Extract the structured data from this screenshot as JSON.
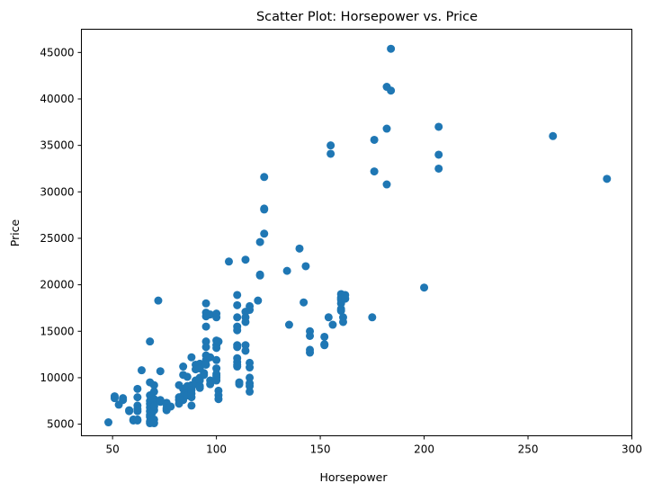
{
  "chart_data": {
    "type": "scatter",
    "title": "Scatter Plot: Horsepower vs. Price",
    "xlabel": "Horsepower",
    "ylabel": "Price",
    "xlim": [
      35,
      300
    ],
    "ylim": [
      3750,
      47500
    ],
    "grid": false,
    "x_ticks": [
      50,
      100,
      150,
      200,
      250,
      300
    ],
    "y_ticks": [
      5000,
      10000,
      15000,
      20000,
      25000,
      30000,
      35000,
      40000,
      45000
    ],
    "marker_color": "#1f77b4",
    "points": [
      [
        48,
        5200
      ],
      [
        51,
        7800
      ],
      [
        51,
        8000
      ],
      [
        53,
        7100
      ],
      [
        55,
        7800
      ],
      [
        55,
        7600
      ],
      [
        58,
        6500
      ],
      [
        58,
        6400
      ],
      [
        60,
        5400
      ],
      [
        60,
        5500
      ],
      [
        62,
        8800
      ],
      [
        62,
        7900
      ],
      [
        62,
        7000
      ],
      [
        62,
        6600
      ],
      [
        62,
        6400
      ],
      [
        62,
        5400
      ],
      [
        62,
        5500
      ],
      [
        64,
        10800
      ],
      [
        68,
        13900
      ],
      [
        68,
        9500
      ],
      [
        68,
        8100
      ],
      [
        68,
        7200
      ],
      [
        68,
        6800
      ],
      [
        68,
        6400
      ],
      [
        68,
        5800
      ],
      [
        68,
        5300
      ],
      [
        68,
        5100
      ],
      [
        68,
        6000
      ],
      [
        68,
        7500
      ],
      [
        69,
        6600
      ],
      [
        69,
        5200
      ],
      [
        69,
        6200
      ],
      [
        70,
        9200
      ],
      [
        70,
        8500
      ],
      [
        70,
        7700
      ],
      [
        70,
        7300
      ],
      [
        70,
        7000
      ],
      [
        70,
        6500
      ],
      [
        70,
        5500
      ],
      [
        70,
        5100
      ],
      [
        70,
        6900
      ],
      [
        72,
        18300
      ],
      [
        73,
        10700
      ],
      [
        73,
        7600
      ],
      [
        73,
        7400
      ],
      [
        76,
        7300
      ],
      [
        76,
        7100
      ],
      [
        76,
        6700
      ],
      [
        76,
        6500
      ],
      [
        78,
        6900
      ],
      [
        82,
        9200
      ],
      [
        82,
        7900
      ],
      [
        82,
        7600
      ],
      [
        82,
        7200
      ],
      [
        84,
        11200
      ],
      [
        84,
        10300
      ],
      [
        84,
        8800
      ],
      [
        84,
        8100
      ],
      [
        84,
        7600
      ],
      [
        86,
        10100
      ],
      [
        86,
        9100
      ],
      [
        86,
        8400
      ],
      [
        86,
        8100
      ],
      [
        88,
        12200
      ],
      [
        88,
        9200
      ],
      [
        88,
        8700
      ],
      [
        88,
        7000
      ],
      [
        88,
        7900
      ],
      [
        88,
        8300
      ],
      [
        90,
        11400
      ],
      [
        90,
        10900
      ],
      [
        90,
        9700
      ],
      [
        90,
        9300
      ],
      [
        92,
        11500
      ],
      [
        92,
        11000
      ],
      [
        92,
        10000
      ],
      [
        92,
        9700
      ],
      [
        92,
        9100
      ],
      [
        92,
        8900
      ],
      [
        94,
        10500
      ],
      [
        94,
        10300
      ],
      [
        95,
        18000
      ],
      [
        95,
        17000
      ],
      [
        95,
        16600
      ],
      [
        95,
        15500
      ],
      [
        95,
        13900
      ],
      [
        95,
        13300
      ],
      [
        95,
        12400
      ],
      [
        95,
        11900
      ],
      [
        95,
        11400
      ],
      [
        97,
        16800
      ],
      [
        97,
        12200
      ],
      [
        97,
        9700
      ],
      [
        97,
        9300
      ],
      [
        100,
        16900
      ],
      [
        100,
        16500
      ],
      [
        100,
        14000
      ],
      [
        100,
        13500
      ],
      [
        100,
        13200
      ],
      [
        100,
        11900
      ],
      [
        100,
        11000
      ],
      [
        100,
        10400
      ],
      [
        100,
        10200
      ],
      [
        100,
        10000
      ],
      [
        100,
        9700
      ],
      [
        101,
        13900
      ],
      [
        101,
        8600
      ],
      [
        101,
        8100
      ],
      [
        101,
        7700
      ],
      [
        106,
        22500
      ],
      [
        110,
        18900
      ],
      [
        110,
        17800
      ],
      [
        110,
        16500
      ],
      [
        110,
        15500
      ],
      [
        110,
        15100
      ],
      [
        110,
        13500
      ],
      [
        110,
        13300
      ],
      [
        110,
        12100
      ],
      [
        110,
        11700
      ],
      [
        110,
        11400
      ],
      [
        110,
        11200
      ],
      [
        111,
        9500
      ],
      [
        111,
        9300
      ],
      [
        114,
        22700
      ],
      [
        114,
        17100
      ],
      [
        114,
        16500
      ],
      [
        114,
        16000
      ],
      [
        114,
        13500
      ],
      [
        114,
        12900
      ],
      [
        116,
        17700
      ],
      [
        116,
        17300
      ],
      [
        116,
        11600
      ],
      [
        116,
        11100
      ],
      [
        116,
        10000
      ],
      [
        116,
        9400
      ],
      [
        116,
        9100
      ],
      [
        116,
        8500
      ],
      [
        120,
        18300
      ],
      [
        121,
        24600
      ],
      [
        121,
        21100
      ],
      [
        121,
        21000
      ],
      [
        123,
        31600
      ],
      [
        123,
        28200
      ],
      [
        123,
        28100
      ],
      [
        123,
        25500
      ],
      [
        134,
        21500
      ],
      [
        135,
        15700
      ],
      [
        140,
        23900
      ],
      [
        142,
        18100
      ],
      [
        143,
        22000
      ],
      [
        145,
        15000
      ],
      [
        145,
        14500
      ],
      [
        145,
        13000
      ],
      [
        145,
        12700
      ],
      [
        152,
        14400
      ],
      [
        152,
        13600
      ],
      [
        152,
        13500
      ],
      [
        154,
        16500
      ],
      [
        155,
        35000
      ],
      [
        155,
        34100
      ],
      [
        156,
        15700
      ],
      [
        160,
        19000
      ],
      [
        160,
        18600
      ],
      [
        160,
        18400
      ],
      [
        160,
        18000
      ],
      [
        160,
        17400
      ],
      [
        160,
        17200
      ],
      [
        161,
        16500
      ],
      [
        161,
        16000
      ],
      [
        162,
        18900
      ],
      [
        162,
        18500
      ],
      [
        175,
        16500
      ],
      [
        176,
        35600
      ],
      [
        176,
        32200
      ],
      [
        182,
        41300
      ],
      [
        182,
        36800
      ],
      [
        182,
        30800
      ],
      [
        184,
        45400
      ],
      [
        184,
        40900
      ],
      [
        200,
        19700
      ],
      [
        207,
        37000
      ],
      [
        207,
        34000
      ],
      [
        207,
        32500
      ],
      [
        262,
        36000
      ],
      [
        288,
        31400
      ]
    ]
  }
}
